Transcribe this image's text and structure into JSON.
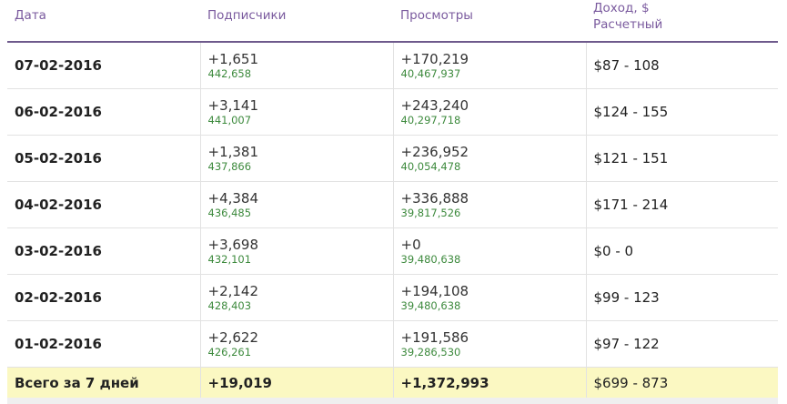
{
  "header": {
    "date": "Дата",
    "subscribers": "Подписчики",
    "views": "Просмотры",
    "income_line1": "Доход, $",
    "income_line2": "Расчетный"
  },
  "rows": [
    {
      "date": "07-02-2016",
      "subs_delta": "+1,651",
      "subs_total": "442,658",
      "views_delta": "+170,219",
      "views_total": "40,467,937",
      "income": "$87 - 108"
    },
    {
      "date": "06-02-2016",
      "subs_delta": "+3,141",
      "subs_total": "441,007",
      "views_delta": "+243,240",
      "views_total": "40,297,718",
      "income": "$124 - 155"
    },
    {
      "date": "05-02-2016",
      "subs_delta": "+1,381",
      "subs_total": "437,866",
      "views_delta": "+236,952",
      "views_total": "40,054,478",
      "income": "$121 - 151"
    },
    {
      "date": "04-02-2016",
      "subs_delta": "+4,384",
      "subs_total": "436,485",
      "views_delta": "+336,888",
      "views_total": "39,817,526",
      "income": "$171 - 214"
    },
    {
      "date": "03-02-2016",
      "subs_delta": "+3,698",
      "subs_total": "432,101",
      "views_delta": "+0",
      "views_total": "39,480,638",
      "income": "$0 - 0"
    },
    {
      "date": "02-02-2016",
      "subs_delta": "+2,142",
      "subs_total": "428,403",
      "views_delta": "+194,108",
      "views_total": "39,480,638",
      "income": "$99 - 123"
    },
    {
      "date": "01-02-2016",
      "subs_delta": "+2,622",
      "subs_total": "426,261",
      "views_delta": "+191,586",
      "views_total": "39,286,530",
      "income": "$97 - 122"
    }
  ],
  "total": {
    "label": "Всего за 7 дней",
    "subs": "+19,019",
    "views": "+1,372,993",
    "income": "$699 - 873"
  },
  "colors": {
    "header_text": "#7a5a9e",
    "header_rule": "#6e5a8c",
    "sub_value": "#3d8a3d",
    "total_bg": "#fbf8c2"
  }
}
